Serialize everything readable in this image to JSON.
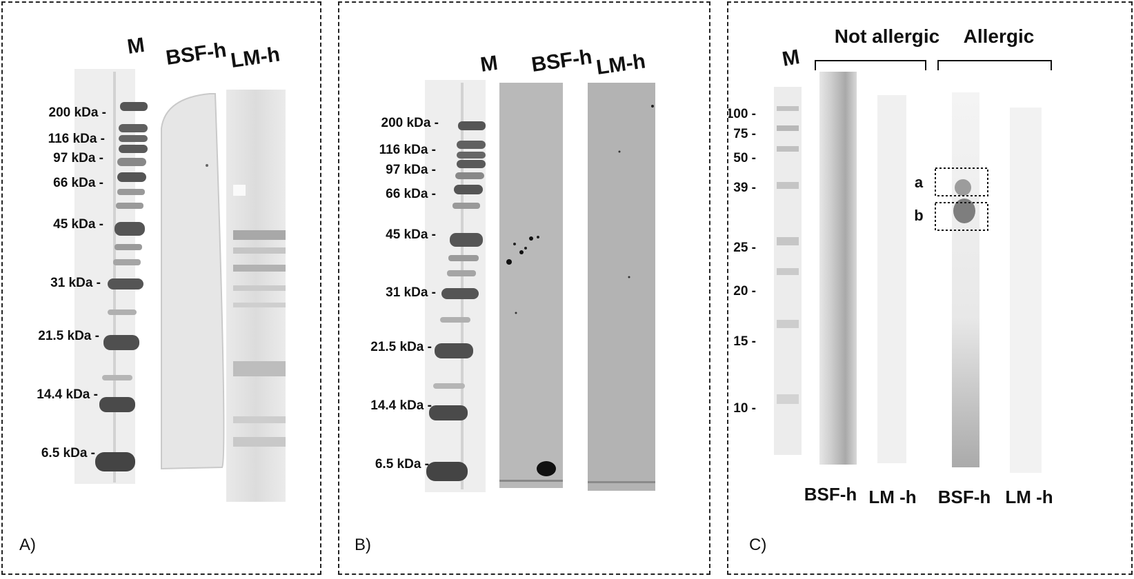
{
  "panel_a": {
    "tag": "A)",
    "lane_headers": [
      "M",
      "BSF-h",
      "LM-h"
    ],
    "mw_markers": [
      "200 kDa -",
      "116 kDa -",
      "97 kDa -",
      "66 kDa -",
      "45 kDa -",
      "31 kDa -",
      "21.5 kDa -",
      "14.4 kDa -",
      "6.5 kDa -"
    ]
  },
  "panel_b": {
    "tag": "B)",
    "lane_headers": [
      "M",
      "BSF-h",
      "LM-h"
    ],
    "mw_markers": [
      "200 kDa -",
      "116 kDa -",
      "97 kDa -",
      "66 kDa -",
      "45 kDa -",
      "31 kDa -",
      "21.5 kDa -",
      "14.4 kDa -",
      "6.5 kDa -"
    ]
  },
  "panel_c": {
    "tag": "C)",
    "lane_header_m": "M",
    "group_not_allergic": "Not allergic",
    "group_allergic": "Allergic",
    "mw_markers": [
      "100 -",
      "75 -",
      "50 -",
      "39 -",
      "25 -",
      "20 -",
      "15 -",
      "10 -"
    ],
    "box_labels": [
      "a",
      "b"
    ],
    "bottom_labels": [
      "BSF-h",
      "LM -h",
      "BSF-h",
      "LM -h"
    ]
  }
}
